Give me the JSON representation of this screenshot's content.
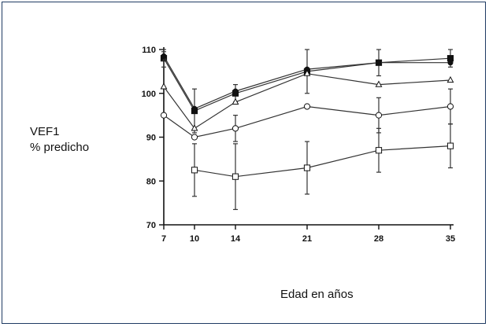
{
  "chart_data": {
    "type": "line",
    "title": "",
    "ylabel_line1": "VEF1",
    "ylabel_line2": "% predicho",
    "xlabel": "Edad en años",
    "x": [
      7,
      10,
      14,
      21,
      28,
      35
    ],
    "x_ticks": [
      "7",
      "10",
      "14",
      "21",
      "28",
      "35"
    ],
    "y_ticks": [
      "70",
      "80",
      "90",
      "100",
      "110"
    ],
    "ylim": [
      70,
      110
    ],
    "grid": false,
    "legend": "none",
    "series": [
      {
        "marker": "filled-square",
        "values": [
          108,
          96,
          100,
          105,
          107,
          108
        ],
        "err": [
          2,
          5,
          2,
          5,
          3,
          2
        ]
      },
      {
        "marker": "filled-circle",
        "values": [
          108.5,
          96.5,
          100.5,
          105.5,
          107,
          107
        ],
        "err": [
          1,
          0,
          0,
          0,
          0,
          0
        ]
      },
      {
        "marker": "open-triangle",
        "values": [
          101.5,
          92,
          98,
          104.5,
          102,
          103
        ],
        "err": [
          0,
          0,
          0,
          0,
          0,
          0
        ]
      },
      {
        "marker": "open-circle",
        "values": [
          95,
          90,
          92,
          97,
          95,
          97
        ],
        "err": [
          0,
          0,
          3,
          0,
          4,
          4
        ]
      },
      {
        "marker": "open-square",
        "values": [
          null,
          82.5,
          81,
          83,
          87,
          88
        ],
        "err": [
          0,
          6,
          7.5,
          6,
          5,
          5
        ]
      }
    ],
    "colors": {
      "line": "#333333",
      "marker": "#111111",
      "axis": "#111111"
    }
  }
}
